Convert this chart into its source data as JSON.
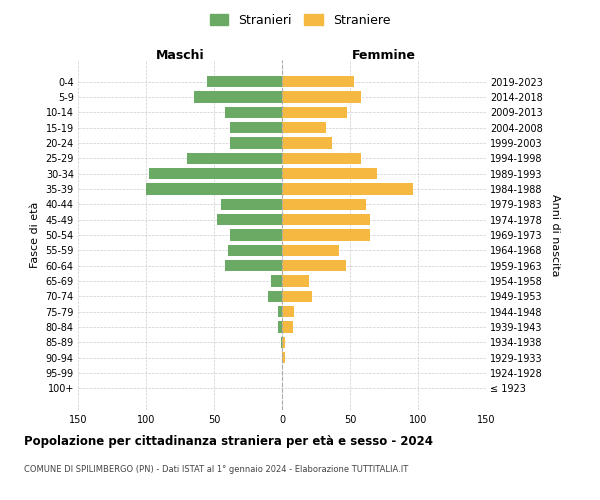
{
  "age_groups": [
    "100+",
    "95-99",
    "90-94",
    "85-89",
    "80-84",
    "75-79",
    "70-74",
    "65-69",
    "60-64",
    "55-59",
    "50-54",
    "45-49",
    "40-44",
    "35-39",
    "30-34",
    "25-29",
    "20-24",
    "15-19",
    "10-14",
    "5-9",
    "0-4"
  ],
  "birth_years": [
    "≤ 1923",
    "1924-1928",
    "1929-1933",
    "1934-1938",
    "1939-1943",
    "1944-1948",
    "1949-1953",
    "1954-1958",
    "1959-1963",
    "1964-1968",
    "1969-1973",
    "1974-1978",
    "1979-1983",
    "1984-1988",
    "1989-1993",
    "1994-1998",
    "1999-2003",
    "2004-2008",
    "2009-2013",
    "2014-2018",
    "2019-2023"
  ],
  "males": [
    0,
    0,
    0,
    1,
    3,
    3,
    10,
    8,
    42,
    40,
    38,
    48,
    45,
    100,
    98,
    70,
    38,
    38,
    42,
    65,
    55
  ],
  "females": [
    0,
    0,
    2,
    2,
    8,
    9,
    22,
    20,
    47,
    42,
    65,
    65,
    62,
    96,
    70,
    58,
    37,
    32,
    48,
    58,
    53
  ],
  "male_color": "#6aaa64",
  "female_color": "#f5b942",
  "background_color": "#ffffff",
  "grid_color": "#cccccc",
  "title": "Popolazione per cittadinanza straniera per età e sesso - 2024",
  "subtitle": "COMUNE DI SPILIMBERGO (PN) - Dati ISTAT al 1° gennaio 2024 - Elaborazione TUTTITALIA.IT",
  "xlabel_left": "Maschi",
  "xlabel_right": "Femmine",
  "ylabel_left": "Fasce di età",
  "ylabel_right": "Anni di nascita",
  "legend_males": "Stranieri",
  "legend_females": "Straniere",
  "xlim": 150
}
